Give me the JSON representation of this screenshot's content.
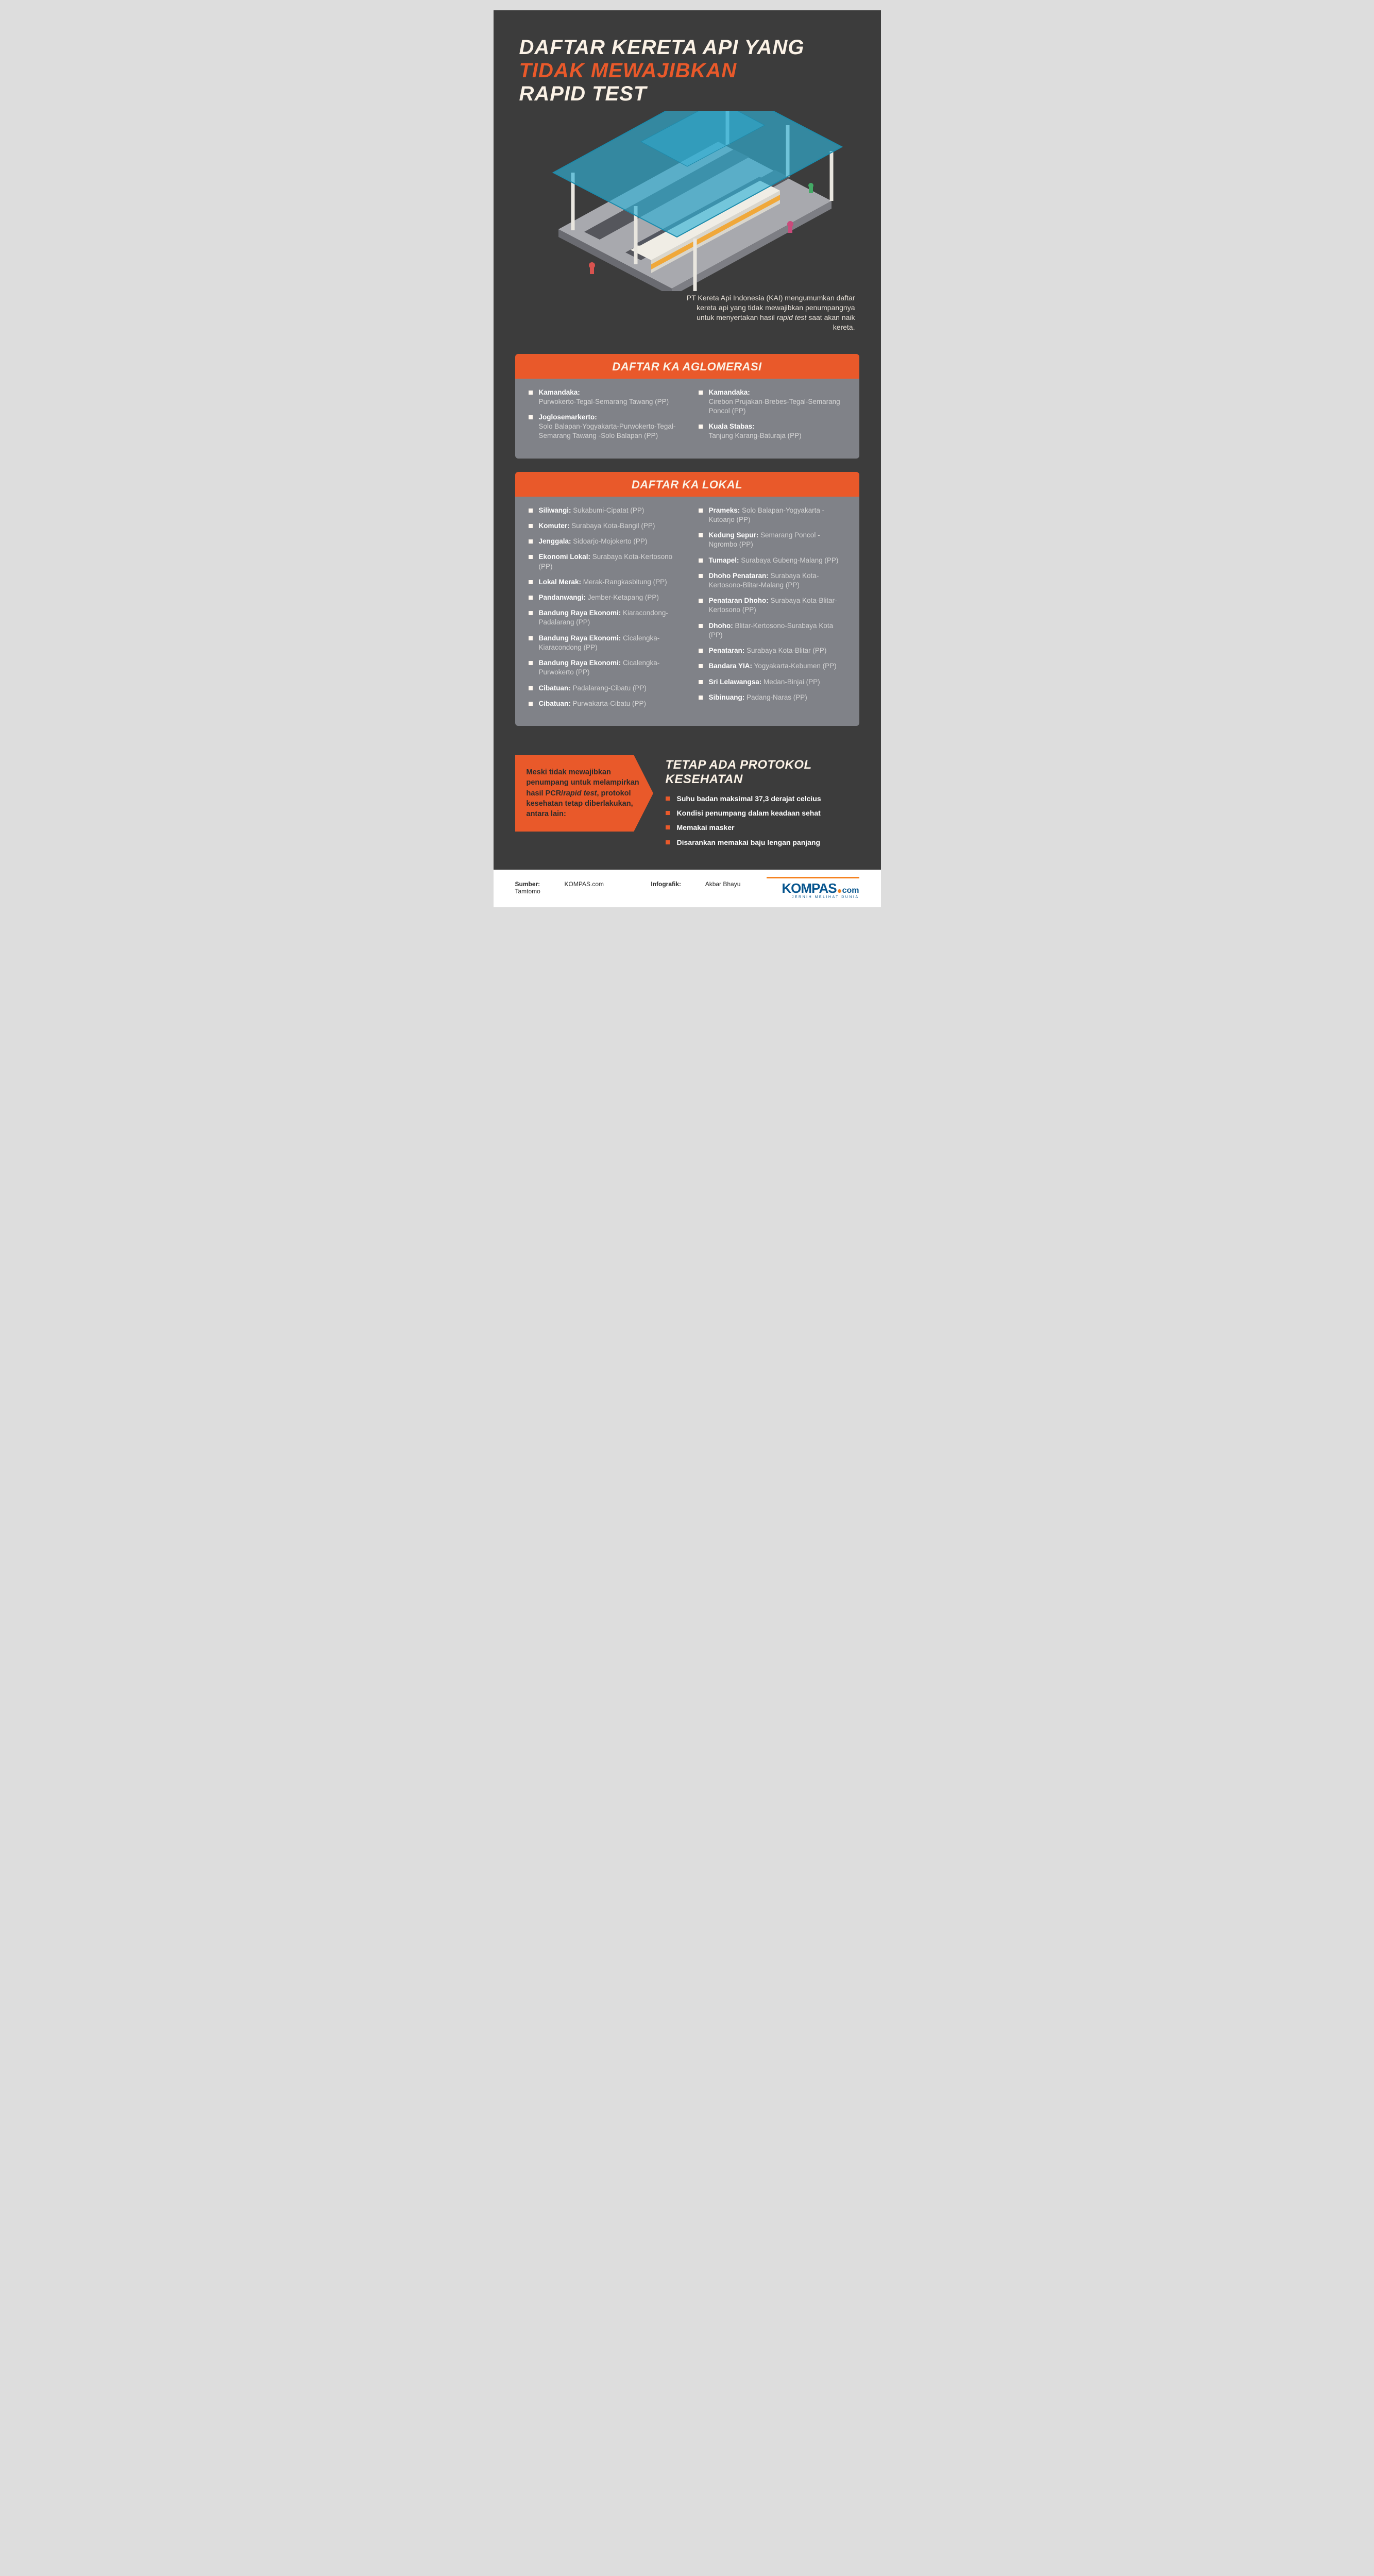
{
  "colors": {
    "bg": "#3c3c3c",
    "orange": "#e9592a",
    "cream": "#fbf2e6",
    "gray_box": "#808288",
    "text_muted": "#d4d4d4",
    "logo_blue": "#08568f",
    "logo_orange": "#f58220"
  },
  "title": {
    "line1": "DAFTAR KERETA API YANG",
    "line2": "TIDAK MEWAJIBKAN",
    "line3": "RAPID TEST",
    "line1_color": "#fbf2e6",
    "line2_color": "#e9592a",
    "line3_color": "#fbf2e6",
    "fontsize": 40
  },
  "intro": "PT Kereta Api Indonesia (KAI) mengumumkan daftar kereta api yang tidak mewajibkan penumpangnya untuk menyertakan hasil rapid test saat akan naik kereta.",
  "station_illustration": {
    "roof_color": "#2fb0d6",
    "roof_opacity": 0.65,
    "platform_color": "#a8a9ae",
    "platform_side": "#7d7e84",
    "pillar_color": "#e9e6df",
    "train_body": "#f0ede5",
    "train_accent": "#f0a83a",
    "train_window": "#545760"
  },
  "sections": [
    {
      "title": "DAFTAR KA AGLOMERASI",
      "title_fontsize": 22,
      "head_bg": "#e9592a",
      "head_color": "#fbf2e6",
      "body_bg": "#808288",
      "mode": "block",
      "left": [
        {
          "name": "Kamandaka:",
          "route": "Purwokerto-Tegal-Semarang Tawang (PP)"
        },
        {
          "name": "Joglosemarkerto:",
          "route": "Solo Balapan-Yogyakarta-Purwokerto-Tegal-Semarang Tawang -Solo Balapan (PP)"
        }
      ],
      "right": [
        {
          "name": "Kamandaka:",
          "route": "Cirebon Prujakan-Brebes-Tegal-Semarang Poncol (PP)"
        },
        {
          "name": "Kuala Stabas:",
          "route": "Tanjung Karang-Baturaja (PP)"
        }
      ]
    },
    {
      "title": "DAFTAR KA LOKAL",
      "title_fontsize": 22,
      "head_bg": "#e9592a",
      "head_color": "#fbf2e6",
      "body_bg": "#808288",
      "mode": "inline",
      "left": [
        {
          "name": "Siliwangi:",
          "route": " Sukabumi-Cipatat (PP)"
        },
        {
          "name": "Komuter:",
          "route": " Surabaya Kota-Bangil (PP)"
        },
        {
          "name": "Jenggala:",
          "route": " Sidoarjo-Mojokerto (PP)"
        },
        {
          "name": "Ekonomi Lokal:",
          "route": " Surabaya Kota-Kertosono (PP)"
        },
        {
          "name": "Lokal Merak:",
          "route": " Merak-Rangkasbitung (PP)"
        },
        {
          "name": "Pandanwangi:",
          "route": " Jember-Ketapang (PP)"
        },
        {
          "name": "Bandung Raya Ekonomi:",
          "route": " Kiaracondong-Padalarang (PP)"
        },
        {
          "name": "Bandung Raya Ekonomi:",
          "route": " Cicalengka-Kiaracondong (PP)"
        },
        {
          "name": "Bandung Raya Ekonomi:",
          "route": " Cicalengka-Purwokerto (PP)"
        },
        {
          "name": "Cibatuan:",
          "route": " Padalarang-Cibatu (PP)"
        },
        {
          "name": "Cibatuan:",
          "route": " Purwakarta-Cibatu (PP)"
        }
      ],
      "right": [
        {
          "name": "Prameks:",
          "route": " Solo Balapan-Yogyakarta -Kutoarjo (PP)"
        },
        {
          "name": "Kedung Sepur:",
          "route": " Semarang Poncol -Ngrombo (PP)"
        },
        {
          "name": "Tumapel:",
          "route": " Surabaya Gubeng-Malang (PP)"
        },
        {
          "name": "Dhoho Penataran:",
          "route": " Surabaya Kota-Kertosono-Blitar-Malang (PP)"
        },
        {
          "name": "Penataran Dhoho:",
          "route": " Surabaya Kota-Blitar-Kertosono (PP)"
        },
        {
          "name": "Dhoho:",
          "route": " Blitar-Kertosono-Surabaya Kota (PP)"
        },
        {
          "name": "Penataran:",
          "route": " Surabaya Kota-Blitar (PP)"
        },
        {
          "name": "Bandara YIA:",
          "route": " Yogyakarta-Kebumen (PP)"
        },
        {
          "name": "Sri Lelawangsa:",
          "route": " Medan-Binjai (PP)"
        },
        {
          "name": "Sibinuang:",
          "route": " Padang-Naras (PP)"
        }
      ]
    }
  ],
  "protocol": {
    "callout_bg": "#e9592a",
    "callout_text": "Meski tidak mewajibkan penumpang untuk melampirkan hasil PCR/rapid test, protokol kesehatan tetap diberlakukan, antara lain:",
    "title": "TETAP ADA PROTOKOL KESEHATAN",
    "title_color": "#fbf2e6",
    "title_fontsize": 24,
    "bullet_color": "#e9592a",
    "items": [
      "Suhu badan maksimal 37,3 derajat celcius",
      "Kondisi penumpang dalam keadaan sehat",
      "Memakai masker",
      "Disarankan memakai baju lengan panjang"
    ]
  },
  "footer": {
    "source_label": "Sumber:",
    "source_value": "KOMPAS.com",
    "credit_label": "Infografik:",
    "credit_value": "Akbar Bhayu Tamtomo",
    "logo_word": "KOMPAS",
    "logo_ext": "com",
    "logo_tagline": "JERNIH MELIHAT DUNIA"
  }
}
